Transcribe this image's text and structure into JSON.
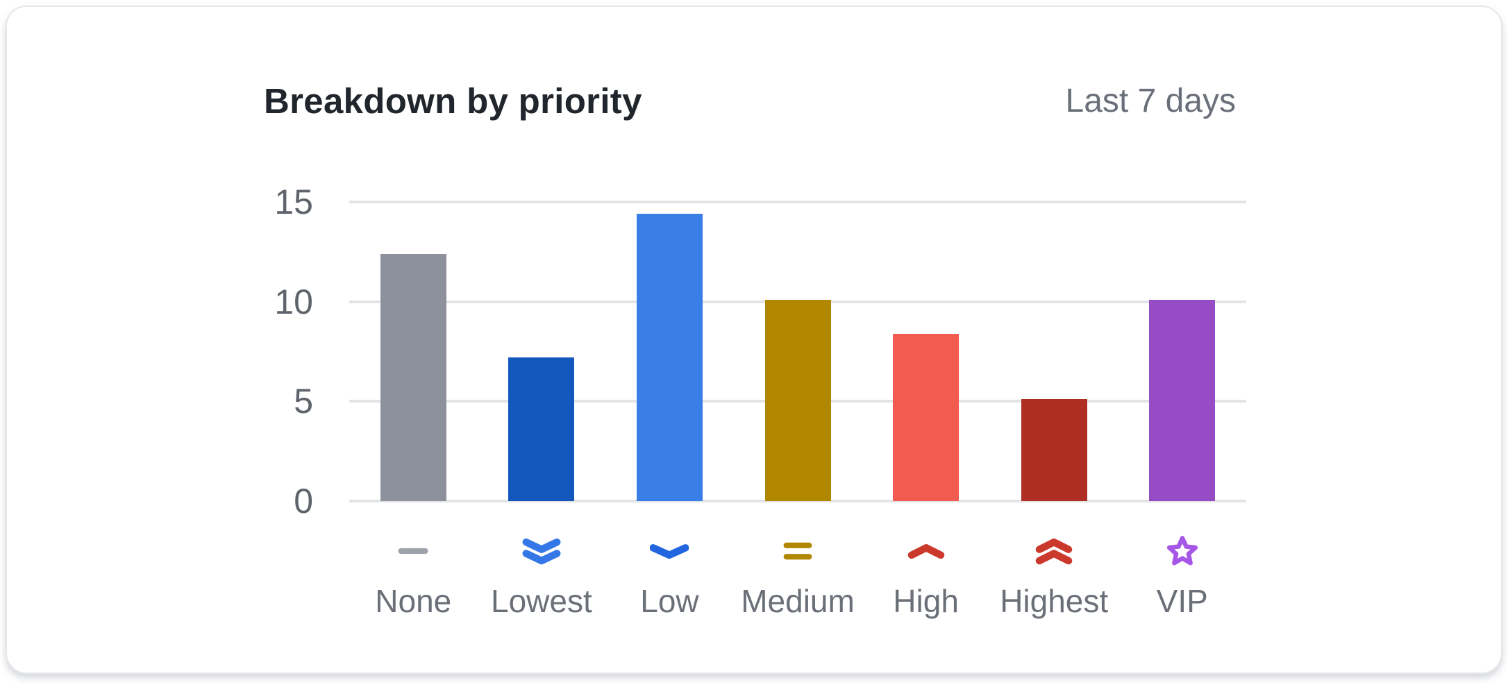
{
  "card": {
    "title": "Breakdown by priority",
    "period": "Last 7 days"
  },
  "chart_data": {
    "type": "bar",
    "title": "Breakdown by priority",
    "period_label": "Last 7 days",
    "categories": [
      "None",
      "Lowest",
      "Low",
      "Medium",
      "High",
      "Highest",
      "VIP"
    ],
    "values": [
      12.4,
      7.2,
      14.4,
      10.1,
      8.4,
      5.1,
      10.1
    ],
    "bar_colors": [
      "#8D919B",
      "#1457BD",
      "#3A7EE8",
      "#B18700",
      "#F25B50",
      "#AF2E23",
      "#964CC4"
    ],
    "icons": [
      {
        "name": "minus-icon",
        "color": "#9EA2AA"
      },
      {
        "name": "double-chevron-down-icon",
        "color": "#3577E6"
      },
      {
        "name": "chevron-down-icon",
        "color": "#2166DF"
      },
      {
        "name": "equals-icon",
        "color": "#B18700"
      },
      {
        "name": "chevron-up-icon",
        "color": "#CB392C"
      },
      {
        "name": "double-chevron-up-icon",
        "color": "#CB392C"
      },
      {
        "name": "star-icon",
        "color": "#A757E8"
      }
    ],
    "yticks": [
      0,
      5,
      10,
      15
    ],
    "ylim": [
      0,
      15
    ],
    "grid": true,
    "legend": false,
    "xlabel": "",
    "ylabel": "",
    "gridline_color": "#E3E4E8",
    "axis_text_color": "#5F636C",
    "label_text_color": "#6B7078"
  }
}
